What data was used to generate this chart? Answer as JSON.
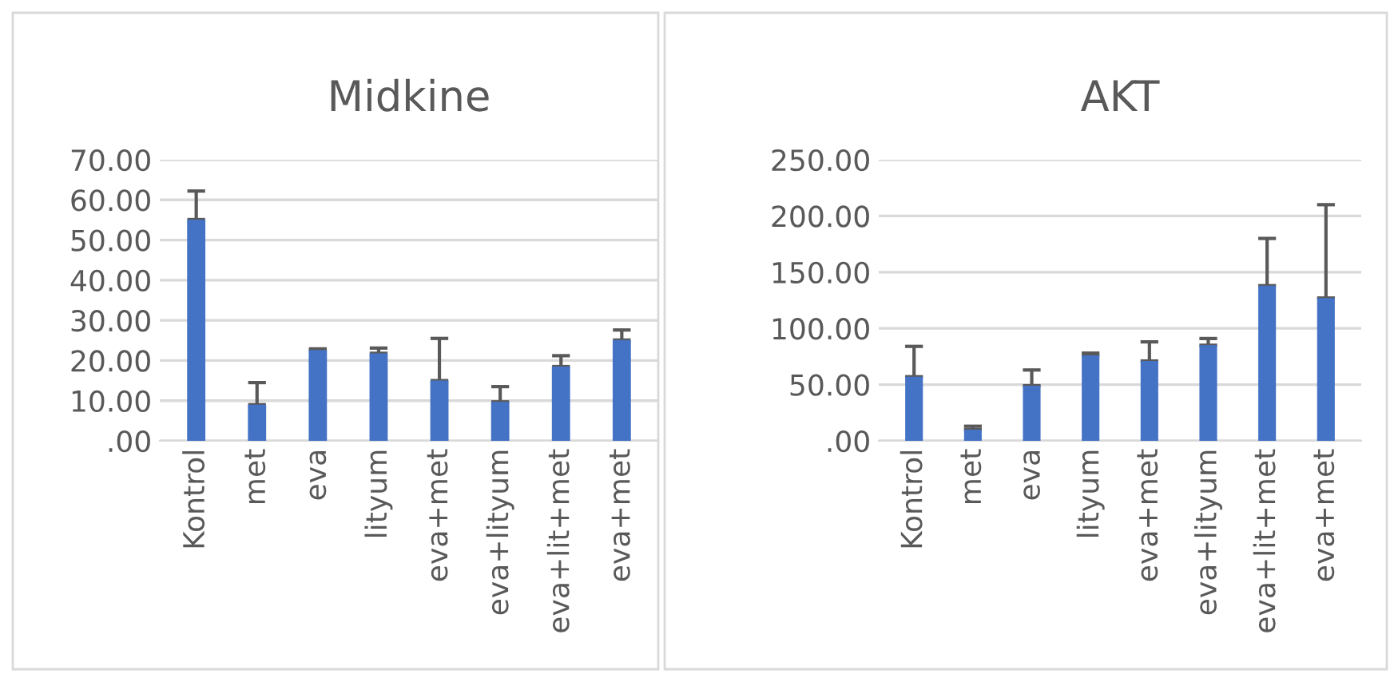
{
  "chart_data": [
    {
      "type": "bar",
      "title": "Midkine",
      "categories": [
        "Kontrol",
        "met",
        "eva",
        "lityum",
        "eva+met",
        "eva+lityum",
        "eva+lit+met",
        "eva+met"
      ],
      "values": [
        55.1,
        9.0,
        22.6,
        21.8,
        15.0,
        9.7,
        18.5,
        25.1
      ],
      "errors": [
        [
          55.1,
          62.2
        ],
        [
          9.0,
          14.5
        ],
        [
          22.6,
          22.9
        ],
        [
          21.8,
          23.1
        ],
        [
          15.0,
          25.5
        ],
        [
          9.7,
          13.5
        ],
        [
          18.5,
          21.2
        ],
        [
          25.1,
          27.6
        ]
      ],
      "color": "#4472c4",
      "ylim": [
        0,
        70
      ],
      "yticks": [
        {
          "value": 0,
          "label": ".00"
        },
        {
          "value": 10,
          "label": "10.00"
        },
        {
          "value": 20,
          "label": "20.00"
        },
        {
          "value": 30,
          "label": "30.00"
        },
        {
          "value": 40,
          "label": "40.00"
        },
        {
          "value": 50,
          "label": "50.00"
        },
        {
          "value": 60,
          "label": "60.00"
        },
        {
          "value": 70,
          "label": "70.00"
        }
      ],
      "grid": "y"
    },
    {
      "type": "bar",
      "title": "AKT",
      "categories": [
        "Kontrol",
        "met",
        "eva",
        "lityum",
        "eva+met",
        "eva+lityum",
        "eva+lit+met",
        "eva+met"
      ],
      "values": [
        57,
        10,
        49,
        76,
        71,
        85,
        138,
        127
      ],
      "errors": [
        [
          57,
          84
        ],
        [
          10,
          13
        ],
        [
          49,
          63
        ],
        [
          76,
          78
        ],
        [
          71,
          88
        ],
        [
          85,
          91
        ],
        [
          138,
          180
        ],
        [
          127,
          210
        ]
      ],
      "color": "#4472c4",
      "ylim": [
        0,
        250
      ],
      "yticks": [
        {
          "value": 0,
          "label": ".00"
        },
        {
          "value": 50,
          "label": "50.00"
        },
        {
          "value": 100,
          "label": "100.00"
        },
        {
          "value": 150,
          "label": "150.00"
        },
        {
          "value": 200,
          "label": "200.00"
        },
        {
          "value": 250,
          "label": "250.00"
        }
      ],
      "grid": "y"
    }
  ]
}
